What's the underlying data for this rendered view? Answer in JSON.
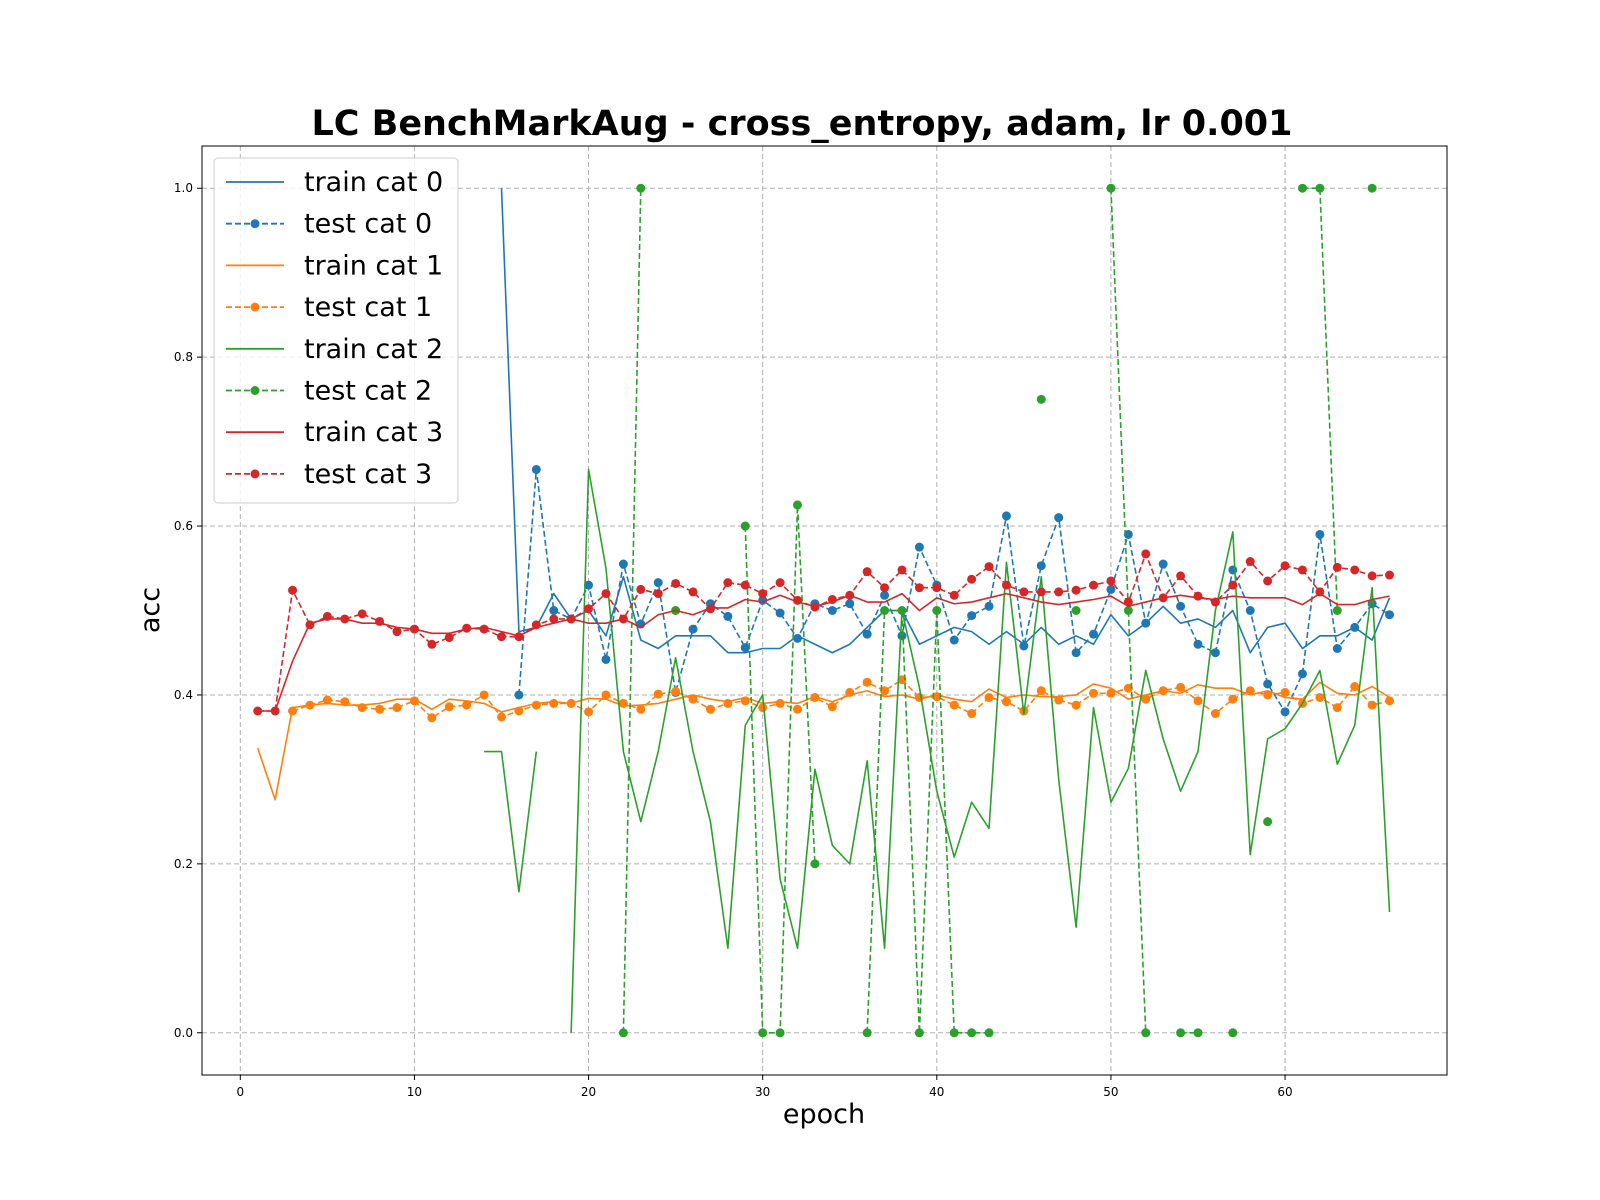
{
  "chart_data": {
    "type": "line",
    "title": "LC BenchMarkAug - cross_entropy, adam, lr 0.001",
    "xlabel": "epoch",
    "ylabel": "acc",
    "xlim": [
      -2.2,
      69.3
    ],
    "ylim": [
      -0.05,
      1.05
    ],
    "xticks": [
      0,
      10,
      20,
      30,
      40,
      50,
      60
    ],
    "yticks": [
      0.0,
      0.2,
      0.4,
      0.6,
      0.8,
      1.0
    ],
    "xtick_labels": [
      "0",
      "10",
      "20",
      "30",
      "40",
      "50",
      "60"
    ],
    "ytick_labels": [
      "0.0",
      "0.2",
      "0.4",
      "0.6",
      "0.8",
      "1.0"
    ],
    "grid": true,
    "legend_position": "top-left",
    "series": [
      {
        "name": "train cat 0",
        "color": "#1f77b4",
        "style": "solid",
        "marker": false,
        "x": [
          15,
          16,
          17,
          18,
          19,
          20,
          21,
          22,
          23,
          24,
          25,
          26,
          27,
          28,
          29,
          30,
          31,
          32,
          33,
          34,
          35,
          36,
          37,
          38,
          39,
          40,
          41,
          42,
          43,
          44,
          45,
          46,
          47,
          48,
          49,
          50,
          51,
          52,
          53,
          54,
          55,
          56,
          57,
          58,
          59,
          60,
          61,
          62,
          63,
          64,
          65,
          66
        ],
        "y": [
          1.0,
          0.475,
          0.48,
          0.52,
          0.49,
          0.5,
          0.47,
          0.54,
          0.465,
          0.455,
          0.47,
          0.47,
          0.47,
          0.45,
          0.45,
          0.455,
          0.455,
          0.47,
          0.46,
          0.45,
          0.46,
          0.48,
          0.5,
          0.5,
          0.46,
          0.47,
          0.48,
          0.475,
          0.46,
          0.475,
          0.46,
          0.48,
          0.46,
          0.47,
          0.46,
          0.495,
          0.47,
          0.485,
          0.505,
          0.485,
          0.49,
          0.48,
          0.5,
          0.45,
          0.48,
          0.485,
          0.455,
          0.47,
          0.47,
          0.48,
          0.465,
          0.515
        ]
      },
      {
        "name": "test cat 0",
        "color": "#1f77b4",
        "style": "dashed",
        "marker": true,
        "x": [
          16,
          17,
          18,
          19,
          20,
          21,
          22,
          23,
          24,
          25,
          26,
          27,
          28,
          29,
          30,
          31,
          32,
          33,
          34,
          35,
          36,
          37,
          38,
          39,
          40,
          41,
          42,
          43,
          44,
          45,
          46,
          47,
          48,
          49,
          50,
          51,
          52,
          53,
          54,
          55,
          56,
          57,
          58,
          59,
          60,
          61,
          62,
          63,
          64,
          65,
          66
        ],
        "y": [
          0.4,
          0.667,
          0.5,
          0.49,
          0.53,
          0.442,
          0.555,
          0.484,
          0.533,
          0.403,
          0.478,
          0.508,
          0.493,
          0.456,
          0.512,
          0.497,
          0.467,
          0.508,
          0.5,
          0.508,
          0.472,
          0.518,
          0.47,
          0.575,
          0.53,
          0.465,
          0.494,
          0.505,
          0.612,
          0.458,
          0.553,
          0.61,
          0.45,
          0.472,
          0.525,
          0.59,
          0.485,
          0.555,
          0.505,
          0.46,
          0.45,
          0.548,
          0.5,
          0.413,
          0.38,
          0.425,
          0.59,
          0.455,
          0.48,
          0.508,
          0.495
        ]
      },
      {
        "name": "train cat 1",
        "color": "#ff7f0e",
        "style": "solid",
        "marker": false,
        "x": [
          1,
          2,
          3,
          4,
          5,
          6,
          7,
          8,
          9,
          10,
          11,
          12,
          13,
          14,
          15,
          16,
          17,
          18,
          19,
          20,
          21,
          22,
          23,
          24,
          25,
          26,
          27,
          28,
          29,
          30,
          31,
          32,
          33,
          34,
          35,
          36,
          37,
          38,
          39,
          40,
          41,
          42,
          43,
          44,
          45,
          46,
          47,
          48,
          49,
          50,
          51,
          52,
          53,
          54,
          55,
          56,
          57,
          58,
          59,
          60,
          61,
          62,
          63,
          64,
          65,
          66
        ],
        "y": [
          0.337,
          0.276,
          0.385,
          0.388,
          0.39,
          0.388,
          0.388,
          0.39,
          0.395,
          0.395,
          0.383,
          0.395,
          0.393,
          0.39,
          0.38,
          0.385,
          0.39,
          0.392,
          0.39,
          0.396,
          0.395,
          0.387,
          0.388,
          0.39,
          0.395,
          0.4,
          0.395,
          0.392,
          0.397,
          0.39,
          0.392,
          0.39,
          0.398,
          0.392,
          0.4,
          0.405,
          0.398,
          0.4,
          0.395,
          0.4,
          0.395,
          0.392,
          0.407,
          0.397,
          0.4,
          0.398,
          0.398,
          0.4,
          0.413,
          0.408,
          0.395,
          0.4,
          0.405,
          0.402,
          0.412,
          0.408,
          0.408,
          0.4,
          0.405,
          0.397,
          0.395,
          0.415,
          0.402,
          0.4,
          0.41,
          0.397
        ]
      },
      {
        "name": "test cat 1",
        "color": "#ff7f0e",
        "style": "dashed",
        "marker": true,
        "x": [
          3,
          4,
          5,
          6,
          7,
          8,
          9,
          10,
          11,
          12,
          13,
          14,
          15,
          16,
          17,
          18,
          19,
          20,
          21,
          22,
          23,
          24,
          25,
          26,
          27,
          28,
          29,
          30,
          31,
          32,
          33,
          34,
          35,
          36,
          37,
          38,
          39,
          40,
          41,
          42,
          43,
          44,
          45,
          46,
          47,
          48,
          49,
          50,
          51,
          52,
          53,
          54,
          55,
          56,
          57,
          58,
          59,
          60,
          61,
          62,
          63,
          64,
          65,
          66
        ],
        "y": [
          0.381,
          0.388,
          0.394,
          0.392,
          0.385,
          0.383,
          0.385,
          0.393,
          0.373,
          0.386,
          0.388,
          0.4,
          0.374,
          0.381,
          0.388,
          0.39,
          0.39,
          0.38,
          0.4,
          0.39,
          0.383,
          0.401,
          0.404,
          0.395,
          0.383,
          0.39,
          0.393,
          0.385,
          0.39,
          0.383,
          0.397,
          0.386,
          0.403,
          0.415,
          0.405,
          0.418,
          0.397,
          0.398,
          0.388,
          0.378,
          0.397,
          0.392,
          0.381,
          0.405,
          0.394,
          0.388,
          0.402,
          0.402,
          0.408,
          0.395,
          0.405,
          0.409,
          0.393,
          0.378,
          0.395,
          0.405,
          0.4,
          0.403,
          0.39,
          0.397,
          0.385,
          0.41,
          0.388,
          0.393
        ]
      },
      {
        "name": "train cat 2",
        "color": "#2ca02c",
        "style": "solid",
        "marker": false,
        "x": [
          14,
          15,
          16,
          17,
          null,
          19,
          20,
          21,
          22,
          23,
          24,
          25,
          26,
          27,
          28,
          29,
          30,
          31,
          32,
          33,
          34,
          35,
          36,
          37,
          38,
          39,
          40,
          41,
          42,
          43,
          44,
          45,
          46,
          47,
          48,
          49,
          50,
          51,
          52,
          53,
          54,
          55,
          56,
          57,
          58,
          59,
          60,
          61,
          62,
          63,
          64,
          65,
          66
        ],
        "y": [
          0.333,
          0.333,
          0.167,
          0.333,
          null,
          0.0,
          0.667,
          0.55,
          0.333,
          0.25,
          0.333,
          0.444,
          0.333,
          0.25,
          0.1,
          0.364,
          0.4,
          0.182,
          0.1,
          0.312,
          0.222,
          0.2,
          0.322,
          0.1,
          0.5,
          0.409,
          0.286,
          0.208,
          0.273,
          0.242,
          0.557,
          0.377,
          0.54,
          0.3,
          0.125,
          0.385,
          0.273,
          0.313,
          0.429,
          0.348,
          0.286,
          0.333,
          0.5,
          0.593,
          0.211,
          0.348,
          0.36,
          0.39,
          0.429,
          0.318,
          0.364,
          0.527,
          0.143
        ]
      },
      {
        "name": "test cat 2",
        "color": "#2ca02c",
        "style": "dashed",
        "marker": true,
        "x": [
          22,
          23,
          null,
          25,
          null,
          29,
          30,
          31,
          32,
          33,
          null,
          36,
          37,
          38,
          39,
          40,
          41,
          42,
          43,
          null,
          46,
          null,
          48,
          null,
          50,
          51,
          52,
          null,
          54,
          55,
          null,
          57,
          null,
          59,
          null,
          61,
          62,
          63,
          null,
          65
        ],
        "y": [
          0.0,
          1.0,
          null,
          0.5,
          null,
          0.6,
          0.0,
          0.0,
          0.625,
          0.2,
          null,
          0.0,
          0.5,
          0.5,
          0.0,
          0.5,
          0.0,
          0.0,
          0.0,
          null,
          0.75,
          null,
          0.5,
          null,
          1.0,
          0.5,
          0.0,
          null,
          0.0,
          0.0,
          null,
          0.0,
          null,
          0.25,
          null,
          1.0,
          1.0,
          0.5,
          null,
          1.0
        ]
      },
      {
        "name": "train cat 3",
        "color": "#d62728",
        "style": "solid",
        "marker": false,
        "x": [
          1,
          2,
          3,
          4,
          5,
          6,
          7,
          8,
          9,
          10,
          11,
          12,
          13,
          14,
          15,
          16,
          17,
          18,
          19,
          20,
          21,
          22,
          23,
          24,
          25,
          26,
          27,
          28,
          29,
          30,
          31,
          32,
          33,
          34,
          35,
          36,
          37,
          38,
          39,
          40,
          41,
          42,
          43,
          44,
          45,
          46,
          47,
          48,
          49,
          50,
          51,
          52,
          53,
          54,
          55,
          56,
          57,
          58,
          59,
          60,
          61,
          62,
          63,
          64,
          65,
          66
        ],
        "y": [
          0.381,
          0.381,
          0.44,
          0.485,
          0.49,
          0.49,
          0.485,
          0.485,
          0.48,
          0.478,
          0.473,
          0.473,
          0.478,
          0.48,
          0.475,
          0.47,
          0.48,
          0.485,
          0.49,
          0.485,
          0.485,
          0.49,
          0.48,
          0.495,
          0.5,
          0.495,
          0.503,
          0.503,
          0.513,
          0.51,
          0.518,
          0.51,
          0.505,
          0.51,
          0.518,
          0.51,
          0.51,
          0.52,
          0.5,
          0.515,
          0.508,
          0.51,
          0.515,
          0.52,
          0.515,
          0.51,
          0.507,
          0.51,
          0.513,
          0.517,
          0.505,
          0.51,
          0.515,
          0.518,
          0.515,
          0.513,
          0.517,
          0.515,
          0.515,
          0.515,
          0.507,
          0.52,
          0.507,
          0.507,
          0.513,
          0.517
        ]
      },
      {
        "name": "test cat 3",
        "color": "#d62728",
        "style": "dashed",
        "marker": true,
        "x": [
          1,
          2,
          3,
          4,
          5,
          6,
          7,
          8,
          9,
          10,
          11,
          12,
          13,
          14,
          15,
          16,
          17,
          18,
          19,
          20,
          21,
          22,
          23,
          24,
          25,
          26,
          27,
          28,
          29,
          30,
          31,
          32,
          33,
          34,
          35,
          36,
          37,
          38,
          39,
          40,
          41,
          42,
          43,
          44,
          45,
          46,
          47,
          48,
          49,
          50,
          51,
          52,
          53,
          54,
          55,
          56,
          57,
          58,
          59,
          60,
          61,
          62,
          63,
          64,
          65,
          66
        ],
        "y": [
          0.381,
          0.381,
          0.524,
          0.483,
          0.493,
          0.49,
          0.496,
          0.487,
          0.475,
          0.478,
          0.46,
          0.468,
          0.479,
          0.478,
          0.469,
          0.469,
          0.483,
          0.49,
          0.49,
          0.502,
          0.52,
          0.49,
          0.525,
          0.52,
          0.532,
          0.522,
          0.502,
          0.533,
          0.53,
          0.52,
          0.533,
          0.512,
          0.504,
          0.513,
          0.518,
          0.546,
          0.527,
          0.548,
          0.527,
          0.527,
          0.518,
          0.537,
          0.552,
          0.53,
          0.522,
          0.522,
          0.522,
          0.524,
          0.53,
          0.535,
          0.51,
          0.567,
          0.515,
          0.541,
          0.517,
          0.51,
          0.53,
          0.558,
          0.535,
          0.553,
          0.548,
          0.522,
          0.551,
          0.548,
          0.541,
          0.542
        ]
      }
    ]
  }
}
